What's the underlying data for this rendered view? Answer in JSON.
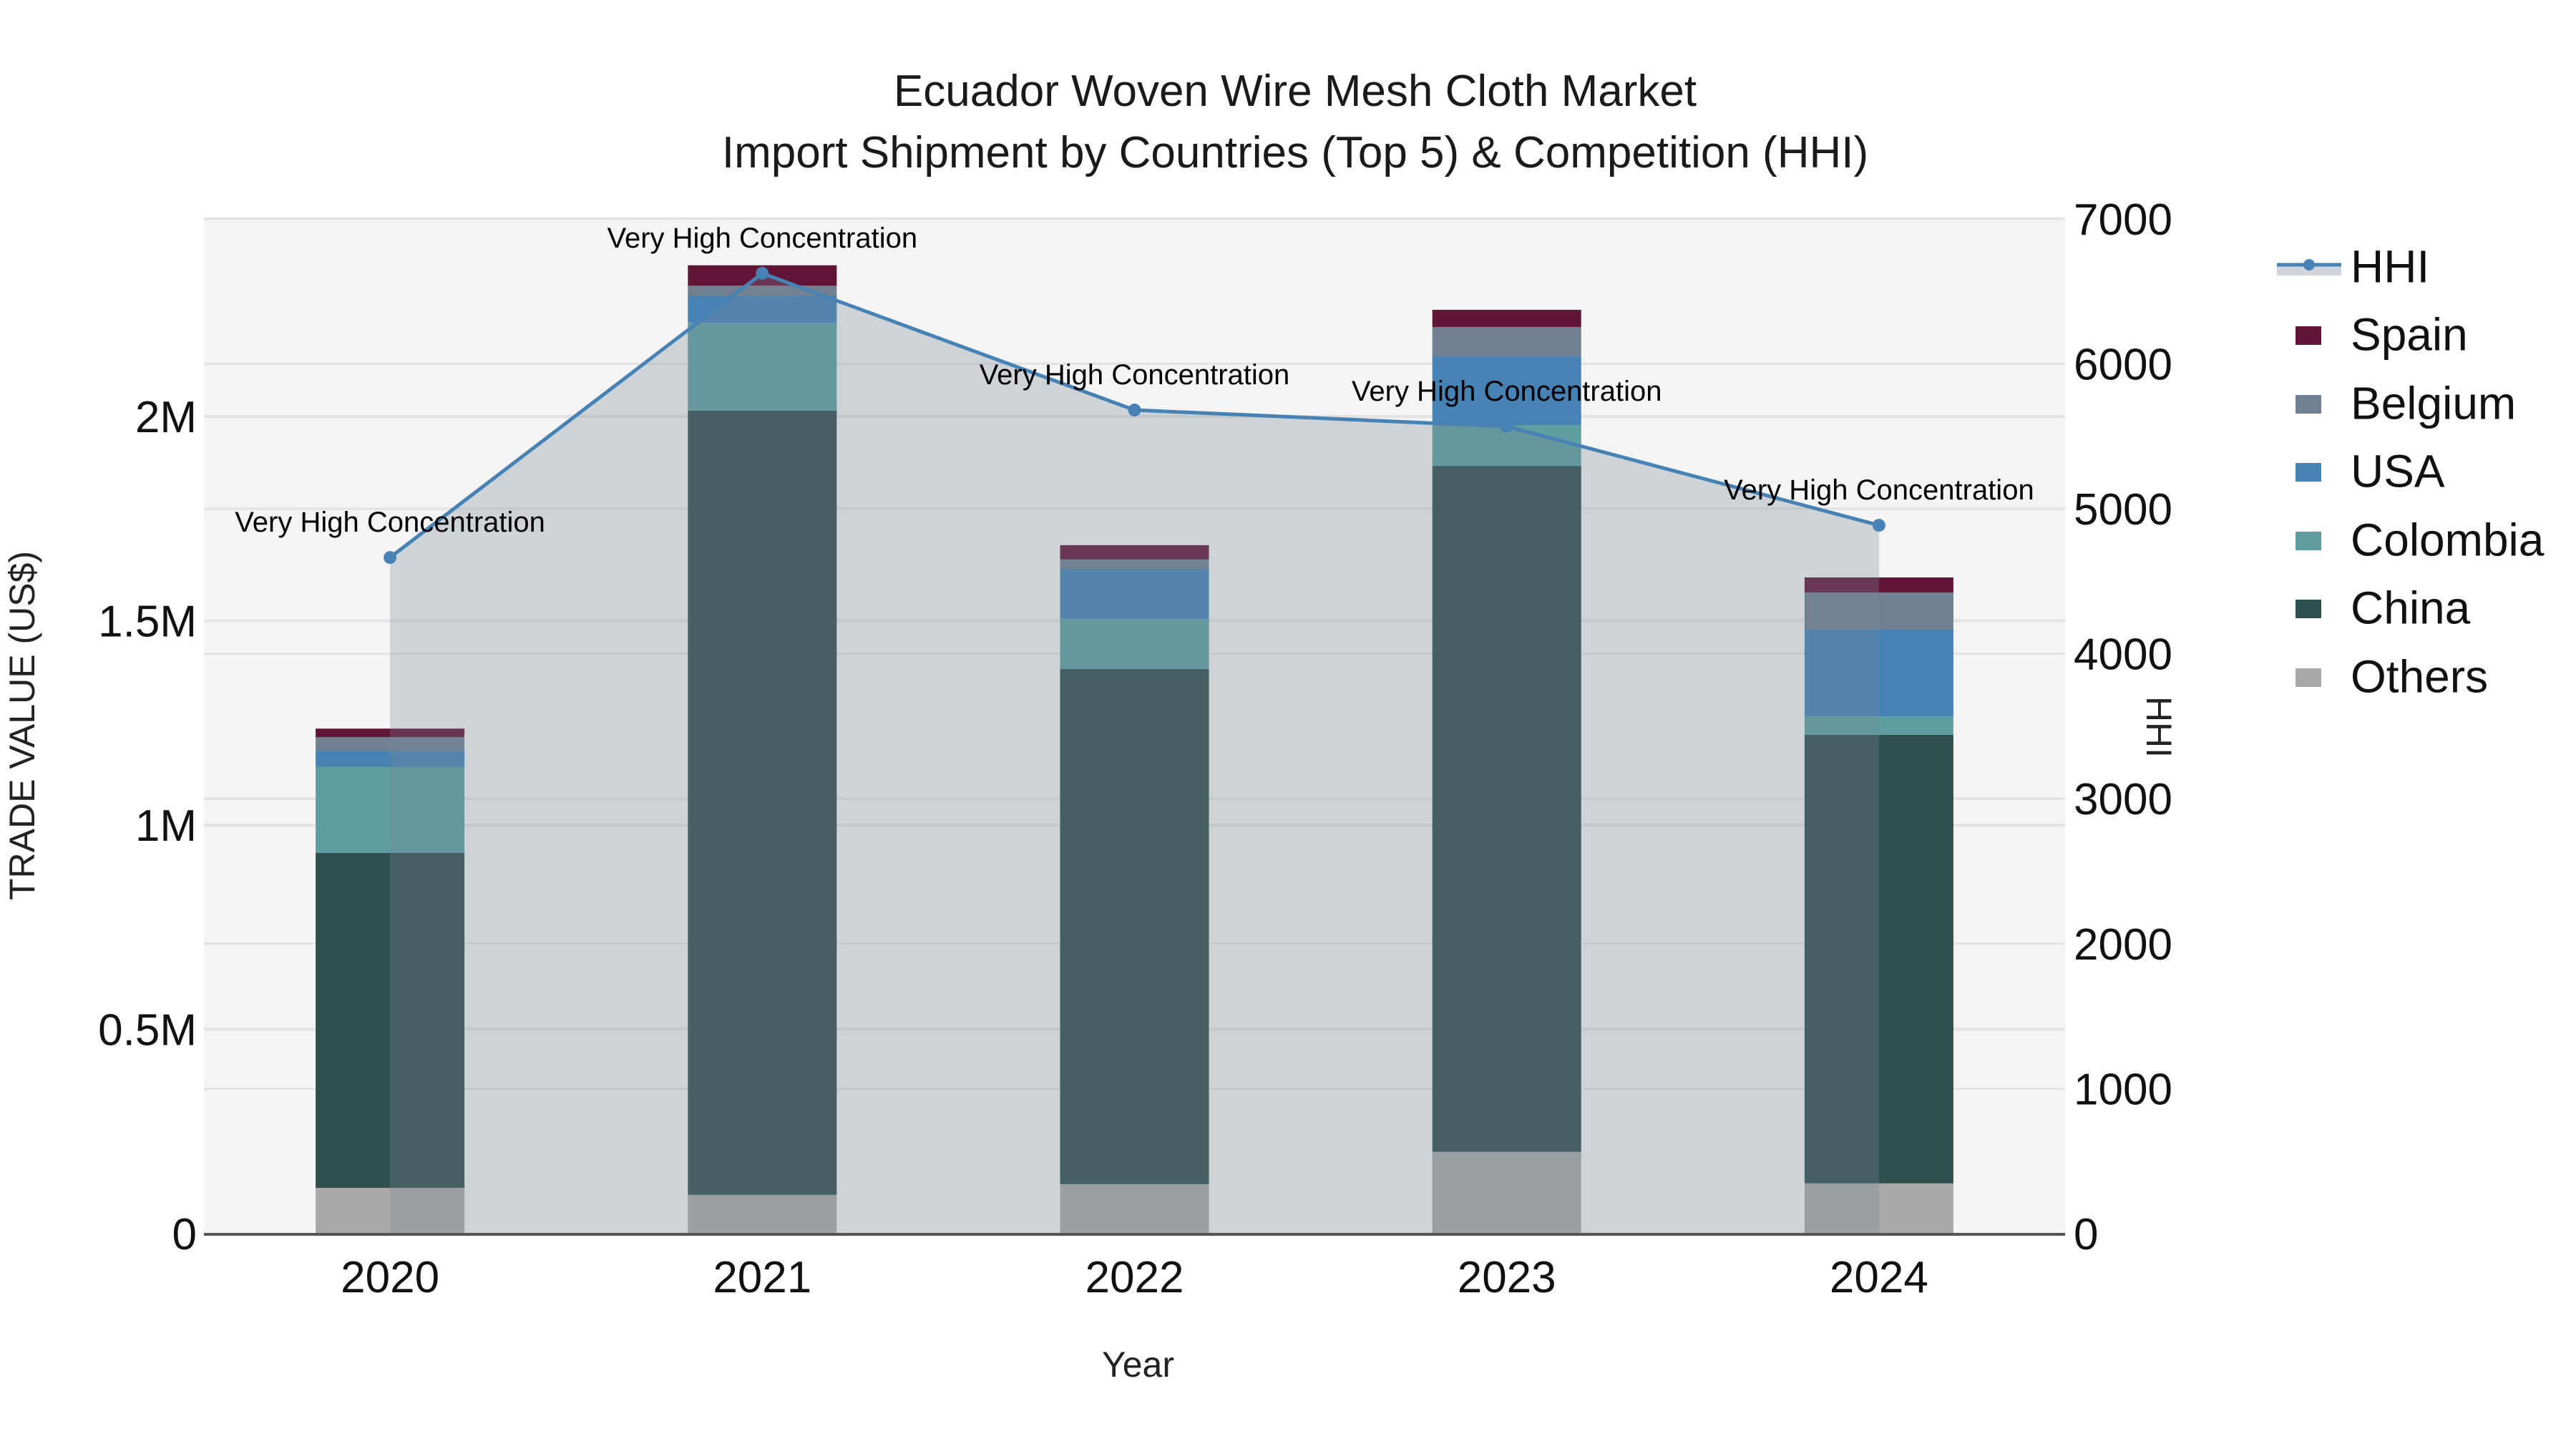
{
  "title": {
    "line1": "Ecuador Woven Wire Mesh Cloth Market",
    "line2": "Import Shipment by Countries (Top 5) & Competition (HHI)"
  },
  "axes": {
    "x_title": "Year",
    "y_left_title": "TRADE VALUE (US$)",
    "y_right_title": "HHI",
    "y_left_ticks": [
      {
        "value": 0,
        "label": "0"
      },
      {
        "value": 0.5,
        "label": "0.5M"
      },
      {
        "value": 1,
        "label": "1M"
      },
      {
        "value": 1.5,
        "label": "1.5M"
      },
      {
        "value": 2,
        "label": "2M"
      }
    ],
    "y_right_ticks": [
      {
        "value": 0,
        "label": "0"
      },
      {
        "value": 1000,
        "label": "1000"
      },
      {
        "value": 2000,
        "label": "2000"
      },
      {
        "value": 3000,
        "label": "3000"
      },
      {
        "value": 4000,
        "label": "4000"
      },
      {
        "value": 5000,
        "label": "5000"
      },
      {
        "value": 6000,
        "label": "6000"
      },
      {
        "value": 7000,
        "label": "7000"
      }
    ]
  },
  "legend": {
    "items": [
      {
        "label": "HHI",
        "type": "line",
        "color": "#4682b4"
      },
      {
        "label": "Spain",
        "type": "bar",
        "color": "#631537"
      },
      {
        "label": "Belgium",
        "type": "bar",
        "color": "#708090"
      },
      {
        "label": "USA",
        "type": "bar",
        "color": "#4682b4"
      },
      {
        "label": "Colombia",
        "type": "bar",
        "color": "#5f9ea0"
      },
      {
        "label": "China",
        "type": "bar",
        "color": "#2f4f4f"
      },
      {
        "label": "Others",
        "type": "bar",
        "color": "#a9a9a9"
      }
    ]
  },
  "colors": {
    "plot_bg": "#f4f4f4",
    "grid": "#e2e2e2",
    "hhi_line": "#4682b4",
    "hhi_fill": "rgba(119,136,153,0.30)",
    "axis_line": "#555555"
  },
  "chart_data": {
    "type": "bar",
    "stacked": true,
    "title": "Ecuador Woven Wire Mesh Cloth Market — Import Shipment by Countries (Top 5) & Competition (HHI)",
    "xlabel": "Year",
    "ylabel": "TRADE VALUE (US$)",
    "y2label": "HHI",
    "categories": [
      "2020",
      "2021",
      "2022",
      "2023",
      "2024"
    ],
    "ylim": [
      0,
      2.485
    ],
    "y_unit": "millions US$",
    "y2lim": [
      0,
      7000
    ],
    "grid": true,
    "legend_position": "right",
    "series": [
      {
        "name": "Others",
        "color": "#a9a9a9",
        "values": [
          0.112,
          0.095,
          0.121,
          0.2,
          0.123
        ]
      },
      {
        "name": "China",
        "color": "#2f4f4f",
        "values": [
          0.82,
          1.919,
          1.261,
          1.679,
          1.098
        ]
      },
      {
        "name": "Colombia",
        "color": "#5f9ea0",
        "values": [
          0.21,
          0.215,
          0.122,
          0.1,
          0.045
        ]
      },
      {
        "name": "USA",
        "color": "#4682b4",
        "values": [
          0.04,
          0.067,
          0.123,
          0.168,
          0.214
        ]
      },
      {
        "name": "Belgium",
        "color": "#708090",
        "values": [
          0.033,
          0.024,
          0.023,
          0.072,
          0.089
        ]
      },
      {
        "name": "Spain",
        "color": "#631537",
        "values": [
          0.021,
          0.05,
          0.035,
          0.042,
          0.037
        ]
      }
    ],
    "line_series": {
      "name": "HHI",
      "axis": "right",
      "type": "line+area",
      "color": "#4682b4",
      "values": [
        4664,
        6624,
        5681,
        5568,
        4886
      ]
    },
    "annotations": [
      {
        "x": "2020",
        "text": "Very High Concentration"
      },
      {
        "x": "2021",
        "text": "Very High Concentration"
      },
      {
        "x": "2022",
        "text": "Very High Concentration"
      },
      {
        "x": "2023",
        "text": "Very High Concentration"
      },
      {
        "x": "2024",
        "text": "Very High Concentration"
      }
    ]
  }
}
